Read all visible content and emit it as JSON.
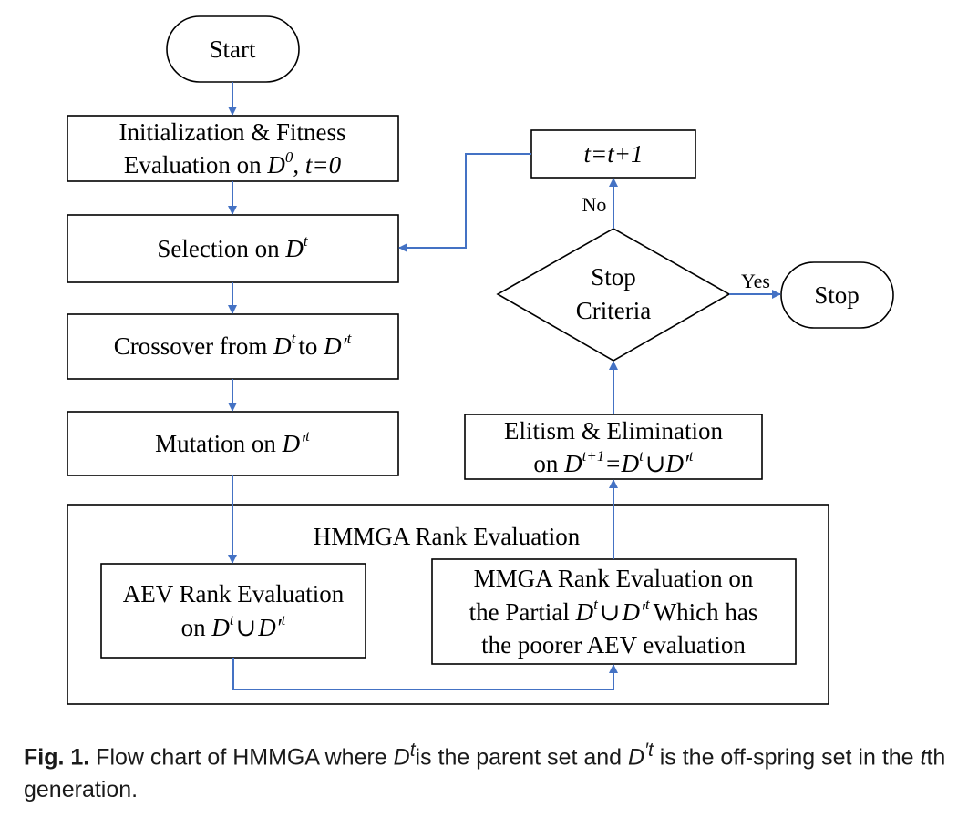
{
  "diagram": {
    "start": "Start",
    "init": {
      "line1": "Initialization & Fitness",
      "line2_a": "Evaluation on ",
      "set": "D",
      "sup": "0",
      "line2_b": ", ",
      "t_eq": "t=0"
    },
    "selection": {
      "text": "Selection on ",
      "set": "D",
      "sup": "t"
    },
    "crossover": {
      "text_a": "Crossover from ",
      "set_a": "D",
      "sup_a": "t",
      "text_b": "to ",
      "set_b": "D′",
      "sup_b": "t"
    },
    "mutation": {
      "text": "Mutation on ",
      "set": "D′",
      "sup": "t"
    },
    "hmmga": "HMMGA Rank Evaluation",
    "aev": {
      "line1": "AEV Rank Evaluation",
      "line2_a": "on  ",
      "set_a": "D",
      "sup_a": "t",
      "union": "∪",
      "set_b": "D′",
      "sup_b": "t"
    },
    "mmga": {
      "line1": "MMGA Rank Evaluation on",
      "line2_a": "the Partial ",
      "set_a": "D",
      "sup_a": "t",
      "union": "∪",
      "set_b": "D′",
      "sup_b": "t",
      "line2_b": "Which has",
      "line3": "the poorer AEV evaluation"
    },
    "elitism": {
      "line1": "Elitism & Elimination",
      "line2_a": "on ",
      "set": "D",
      "sup": "t+1",
      "eq": "=D",
      "sup_b": "t",
      "union": "∪",
      "set_c": "D′",
      "sup_c": "t"
    },
    "stop_criteria": {
      "line1": "Stop",
      "line2": "Criteria"
    },
    "increment": "t=t+1",
    "no_label": "No",
    "yes_label": "Yes",
    "stop": "Stop"
  },
  "caption": {
    "fig": "Fig. 1.",
    "text_a": " Flow chart of HMMGA where ",
    "set_a": "D",
    "sup_a": "t",
    "text_b": "is the parent set and ",
    "set_b": "D",
    "sup_b": "′t",
    "text_c": " is the off-spring set in the ",
    "t_var": "t",
    "text_d": "th generation."
  },
  "colors": {
    "arrow": "#4472C4",
    "border": "#000000"
  }
}
